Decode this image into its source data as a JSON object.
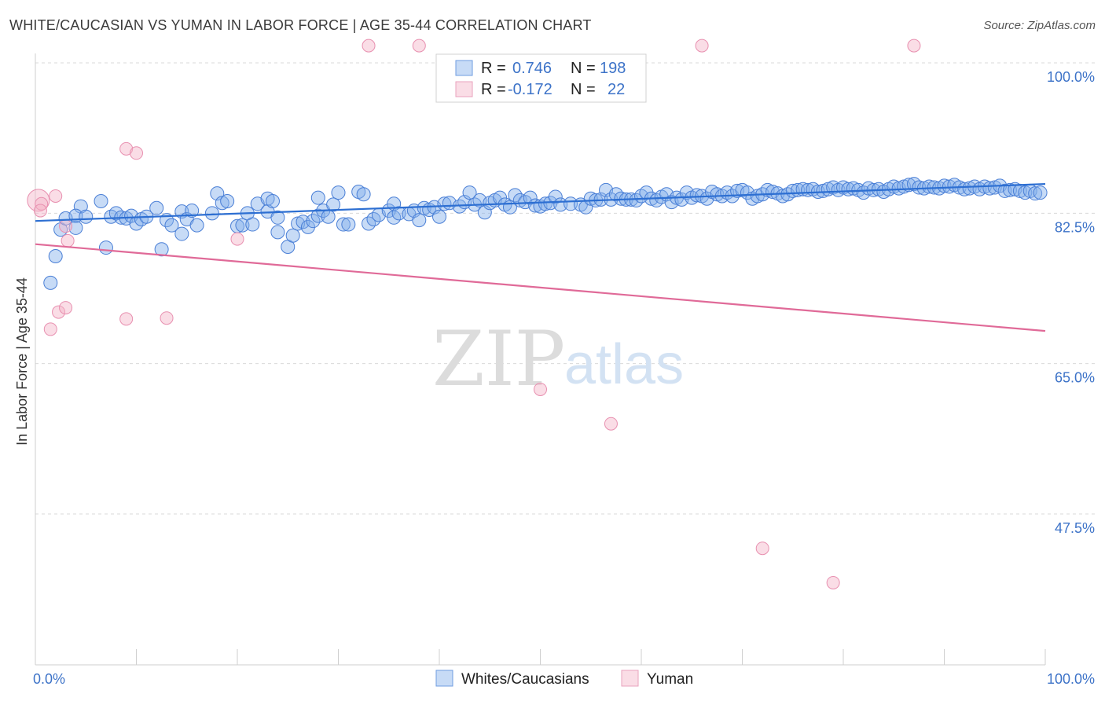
{
  "header": {
    "title": "WHITE/CAUCASIAN VS YUMAN IN LABOR FORCE | AGE 35-44 CORRELATION CHART",
    "source": "Source: ZipAtlas.com"
  },
  "legend_box": {
    "rows": [
      {
        "r_label": "R =",
        "r_value": "0.746",
        "n_label": "N =",
        "n_value": "198"
      },
      {
        "r_label": "R =",
        "r_value": "-0.172",
        "n_label": "N =",
        "n_value": "22"
      }
    ]
  },
  "watermark": {
    "zip": "ZIP",
    "atlas": "atlas"
  },
  "colors": {
    "blue": "#4a7fd6",
    "blue_fill": "rgba(130,175,235,0.45)",
    "blue_line": "#2d6fd2",
    "pink": "#e890b0",
    "pink_fill": "rgba(245,180,200,0.45)",
    "pink_line": "#e06a98",
    "grid": "#d9d9d9",
    "tick_label": "#3d73c8"
  },
  "chart_data": {
    "type": "scatter",
    "title": "WHITE/CAUCASIAN VS YUMAN IN LABOR FORCE | AGE 35-44 CORRELATION CHART",
    "xlabel": "",
    "ylabel": "In Labor Force | Age 35-44",
    "xlim": [
      0,
      100
    ],
    "ylim": [
      34,
      102
    ],
    "x_tick_labels": [
      {
        "value": 0,
        "label": "0.0%"
      },
      {
        "value": 100,
        "label": "100.0%"
      }
    ],
    "y_tick_labels": [
      {
        "value": 47.5,
        "label": "47.5%"
      },
      {
        "value": 65.0,
        "label": "65.0%"
      },
      {
        "value": 82.5,
        "label": "82.5%"
      },
      {
        "value": 100.0,
        "label": "100.0%"
      }
    ],
    "grid": "horizontal dashed",
    "legend": [
      "Whites/Caucasians",
      "Yuman"
    ],
    "series": [
      {
        "name": "Whites/Caucasians",
        "r": 0.746,
        "n": 198,
        "trend": {
          "x": [
            0,
            100
          ],
          "y": [
            81.6,
            85.9
          ]
        },
        "points": [
          [
            2,
            77.5
          ],
          [
            1.5,
            74.4
          ],
          [
            2.5,
            80.6
          ],
          [
            3,
            81.9
          ],
          [
            4,
            80.8
          ],
          [
            4.5,
            83.3
          ],
          [
            4,
            82.2
          ],
          [
            5,
            82.1
          ],
          [
            6.5,
            83.9
          ],
          [
            7,
            78.5
          ],
          [
            7.5,
            82.1
          ],
          [
            8,
            82.5
          ],
          [
            8.5,
            82.0
          ],
          [
            9,
            81.9
          ],
          [
            9.5,
            82.2
          ],
          [
            10,
            81.3
          ],
          [
            10.5,
            81.8
          ],
          [
            11,
            82.1
          ],
          [
            12,
            83.1
          ],
          [
            12.5,
            78.3
          ],
          [
            13,
            81.7
          ],
          [
            13.5,
            81.1
          ],
          [
            14.5,
            82.7
          ],
          [
            14.5,
            80.1
          ],
          [
            15,
            81.8
          ],
          [
            15.5,
            82.8
          ],
          [
            16,
            81.1
          ],
          [
            17.5,
            82.5
          ],
          [
            18,
            84.8
          ],
          [
            18.5,
            83.7
          ],
          [
            19,
            83.9
          ],
          [
            20,
            81.0
          ],
          [
            20.5,
            81.1
          ],
          [
            21,
            82.5
          ],
          [
            21.5,
            81.2
          ],
          [
            22,
            83.6
          ],
          [
            23,
            82.7
          ],
          [
            23,
            84.2
          ],
          [
            23.5,
            83.9
          ],
          [
            24,
            82.0
          ],
          [
            24,
            80.3
          ],
          [
            25,
            78.6
          ],
          [
            25.5,
            79.9
          ],
          [
            26,
            81.3
          ],
          [
            26.5,
            81.5
          ],
          [
            27,
            80.9
          ],
          [
            27.5,
            81.6
          ],
          [
            28,
            82.2
          ],
          [
            28,
            84.3
          ],
          [
            28.5,
            82.8
          ],
          [
            29,
            82.1
          ],
          [
            29.5,
            83.5
          ],
          [
            30,
            84.9
          ],
          [
            30.5,
            81.2
          ],
          [
            31,
            81.2
          ],
          [
            32,
            85.0
          ],
          [
            32.5,
            84.7
          ],
          [
            33,
            81.3
          ],
          [
            33.5,
            81.8
          ],
          [
            34,
            82.3
          ],
          [
            35,
            82.8
          ],
          [
            35.5,
            83.6
          ],
          [
            35.5,
            82.0
          ],
          [
            36,
            82.5
          ],
          [
            37,
            82.4
          ],
          [
            37.5,
            82.8
          ],
          [
            38,
            81.7
          ],
          [
            38.5,
            83.1
          ],
          [
            39,
            82.9
          ],
          [
            39.5,
            83.2
          ],
          [
            40,
            82.1
          ],
          [
            40.5,
            83.6
          ],
          [
            41,
            83.7
          ],
          [
            42,
            83.3
          ],
          [
            42.5,
            83.8
          ],
          [
            43,
            84.9
          ],
          [
            43.5,
            83.5
          ],
          [
            44,
            84.0
          ],
          [
            44.5,
            82.6
          ],
          [
            45,
            83.7
          ],
          [
            45.5,
            84.0
          ],
          [
            46,
            84.3
          ],
          [
            46.5,
            83.5
          ],
          [
            47,
            83.2
          ],
          [
            47.5,
            84.6
          ],
          [
            48,
            84.0
          ],
          [
            48.5,
            83.8
          ],
          [
            49,
            84.3
          ],
          [
            49.5,
            83.4
          ],
          [
            50,
            83.3
          ],
          [
            50.5,
            83.6
          ],
          [
            51,
            83.7
          ],
          [
            51.5,
            84.4
          ],
          [
            52,
            83.5
          ],
          [
            53,
            83.6
          ],
          [
            54,
            83.5
          ],
          [
            54.5,
            83.2
          ],
          [
            55,
            84.2
          ],
          [
            55.5,
            84.0
          ],
          [
            56,
            84.1
          ],
          [
            56.5,
            85.2
          ],
          [
            57,
            84.1
          ],
          [
            57.5,
            84.7
          ],
          [
            58,
            84.2
          ],
          [
            58.5,
            84.1
          ],
          [
            59,
            84.1
          ],
          [
            59.5,
            84.0
          ],
          [
            60,
            84.5
          ],
          [
            60.5,
            84.9
          ],
          [
            61,
            84.2
          ],
          [
            61.5,
            84.0
          ],
          [
            62,
            84.4
          ],
          [
            62.5,
            84.7
          ],
          [
            63,
            83.8
          ],
          [
            63.5,
            84.3
          ],
          [
            64,
            84.1
          ],
          [
            64.5,
            84.9
          ],
          [
            65,
            84.3
          ],
          [
            65.5,
            84.6
          ],
          [
            66,
            84.5
          ],
          [
            66.5,
            84.2
          ],
          [
            67,
            85.0
          ],
          [
            67.5,
            84.7
          ],
          [
            68,
            84.5
          ],
          [
            68.5,
            84.9
          ],
          [
            69,
            84.5
          ],
          [
            69.5,
            85.1
          ],
          [
            70,
            85.2
          ],
          [
            70.5,
            84.9
          ],
          [
            71,
            84.2
          ],
          [
            71.5,
            84.5
          ],
          [
            72,
            84.7
          ],
          [
            72.5,
            85.2
          ],
          [
            73,
            85.0
          ],
          [
            73.5,
            84.8
          ],
          [
            74,
            84.5
          ],
          [
            74.5,
            84.7
          ],
          [
            75,
            85.1
          ],
          [
            75.5,
            85.2
          ],
          [
            76,
            85.3
          ],
          [
            76.5,
            85.2
          ],
          [
            77,
            85.3
          ],
          [
            77.5,
            85.0
          ],
          [
            78,
            85.1
          ],
          [
            78.5,
            85.3
          ],
          [
            79,
            85.5
          ],
          [
            79.5,
            85.2
          ],
          [
            80,
            85.5
          ],
          [
            80.5,
            85.3
          ],
          [
            81,
            85.4
          ],
          [
            81.5,
            85.2
          ],
          [
            82,
            84.9
          ],
          [
            82.5,
            85.4
          ],
          [
            83,
            85.2
          ],
          [
            83.5,
            85.3
          ],
          [
            84,
            85.0
          ],
          [
            84.5,
            85.3
          ],
          [
            85,
            85.6
          ],
          [
            85.5,
            85.4
          ],
          [
            86,
            85.6
          ],
          [
            86.5,
            85.8
          ],
          [
            87,
            85.9
          ],
          [
            87.5,
            85.5
          ],
          [
            88,
            85.4
          ],
          [
            88.5,
            85.6
          ],
          [
            89,
            85.5
          ],
          [
            89.5,
            85.4
          ],
          [
            90,
            85.7
          ],
          [
            90.5,
            85.6
          ],
          [
            91,
            85.8
          ],
          [
            91.5,
            85.5
          ],
          [
            92,
            85.3
          ],
          [
            92.5,
            85.4
          ],
          [
            93,
            85.6
          ],
          [
            93.5,
            85.3
          ],
          [
            94,
            85.6
          ],
          [
            94.5,
            85.4
          ],
          [
            95,
            85.5
          ],
          [
            95.5,
            85.7
          ],
          [
            96,
            85.1
          ],
          [
            96.5,
            85.2
          ],
          [
            97,
            85.3
          ],
          [
            97.5,
            85.1
          ],
          [
            98,
            84.9
          ],
          [
            98.5,
            85.1
          ],
          [
            99,
            84.8
          ],
          [
            99.5,
            84.9
          ]
        ]
      },
      {
        "name": "Yuman",
        "r": -0.172,
        "n": 22,
        "trend": {
          "x": [
            0,
            100
          ],
          "y": [
            78.9,
            68.8
          ]
        },
        "points": [
          [
            0.3,
            84.0
          ],
          [
            0.6,
            83.6
          ],
          [
            2,
            84.5
          ],
          [
            3,
            81.0
          ],
          [
            3.2,
            79.3
          ],
          [
            1.5,
            69.0
          ],
          [
            2.3,
            71.0
          ],
          [
            3.0,
            71.5
          ],
          [
            9,
            90.0
          ],
          [
            10,
            89.5
          ],
          [
            9,
            70.2
          ],
          [
            13,
            70.3
          ],
          [
            20,
            79.5
          ],
          [
            33,
            102.0
          ],
          [
            38,
            102.0
          ],
          [
            66,
            102.0
          ],
          [
            87,
            102.0
          ],
          [
            50,
            62.0
          ],
          [
            57,
            58.0
          ],
          [
            72,
            43.5
          ],
          [
            79,
            39.5
          ],
          [
            0.5,
            82.8
          ]
        ]
      }
    ]
  }
}
